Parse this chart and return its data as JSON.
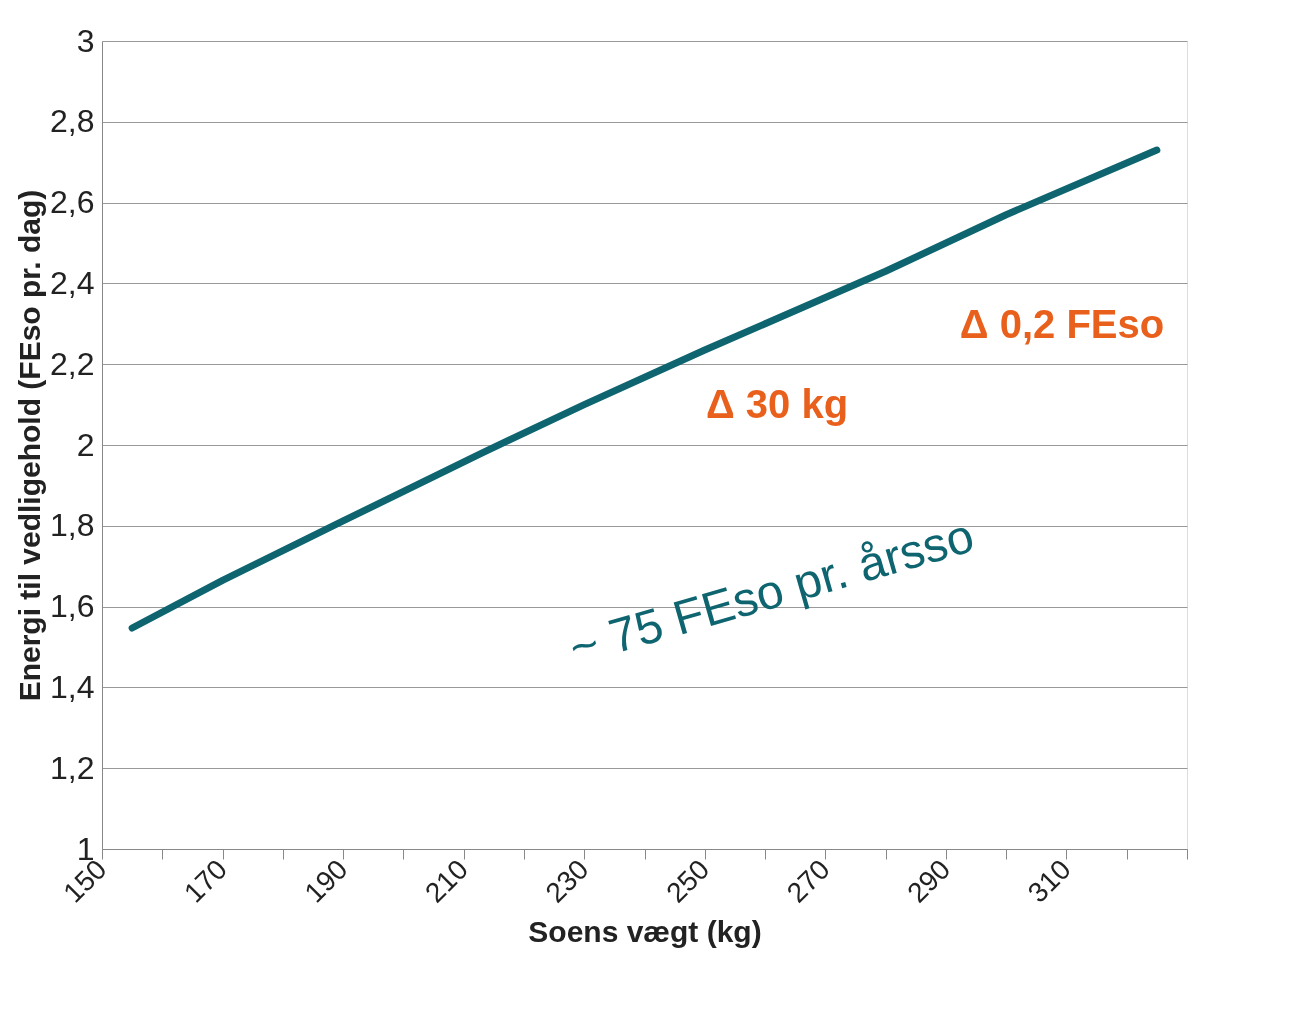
{
  "chart_data": {
    "type": "line",
    "xlabel": "Soens vægt (kg)",
    "ylabel": "Energi til vedligehold (FEso pr. dag)",
    "x": [
      155,
      170,
      190,
      213,
      230,
      250,
      280,
      300,
      325
    ],
    "series": [
      {
        "color": "#0e6570",
        "values": [
          1.547,
          1.665,
          1.812,
          1.98,
          2.1,
          2.235,
          2.43,
          2.57,
          2.73
        ]
      }
    ],
    "xlim": [
      150,
      330
    ],
    "xticks": [
      150,
      {
        "value": 160,
        "label": null
      },
      170,
      {
        "value": 180,
        "label": null
      },
      190,
      {
        "value": 200,
        "label": null
      },
      210,
      {
        "value": 220,
        "label": null
      },
      230,
      {
        "value": 240,
        "label": null
      },
      250,
      {
        "value": 260,
        "label": null
      },
      270,
      {
        "value": 280,
        "label": null
      },
      290,
      {
        "value": 300,
        "label": null
      },
      310,
      {
        "value": 320,
        "label": null
      },
      {
        "value": 330,
        "label": null
      }
    ],
    "ylim": [
      1,
      3
    ],
    "yticks": [
      {
        "value": 1,
        "label": "1"
      },
      {
        "value": 1.2,
        "label": "1,2"
      },
      {
        "value": 1.4,
        "label": "1,4"
      },
      {
        "value": 1.6,
        "label": "1,6"
      },
      {
        "value": 1.8,
        "label": "1,8"
      },
      {
        "value": 2,
        "label": "2"
      },
      {
        "value": 2.2,
        "label": "2,2"
      },
      {
        "value": 2.4,
        "label": "2,4"
      },
      {
        "value": 2.6,
        "label": "2,6"
      },
      {
        "value": 2.8,
        "label": "2,8"
      },
      {
        "value": 3,
        "label": "3"
      }
    ],
    "grid": "y",
    "annotations": [
      "Δ 30 kg",
      "Δ 0,2 FEso",
      "~ 75 FEso pr. årsso"
    ]
  }
}
